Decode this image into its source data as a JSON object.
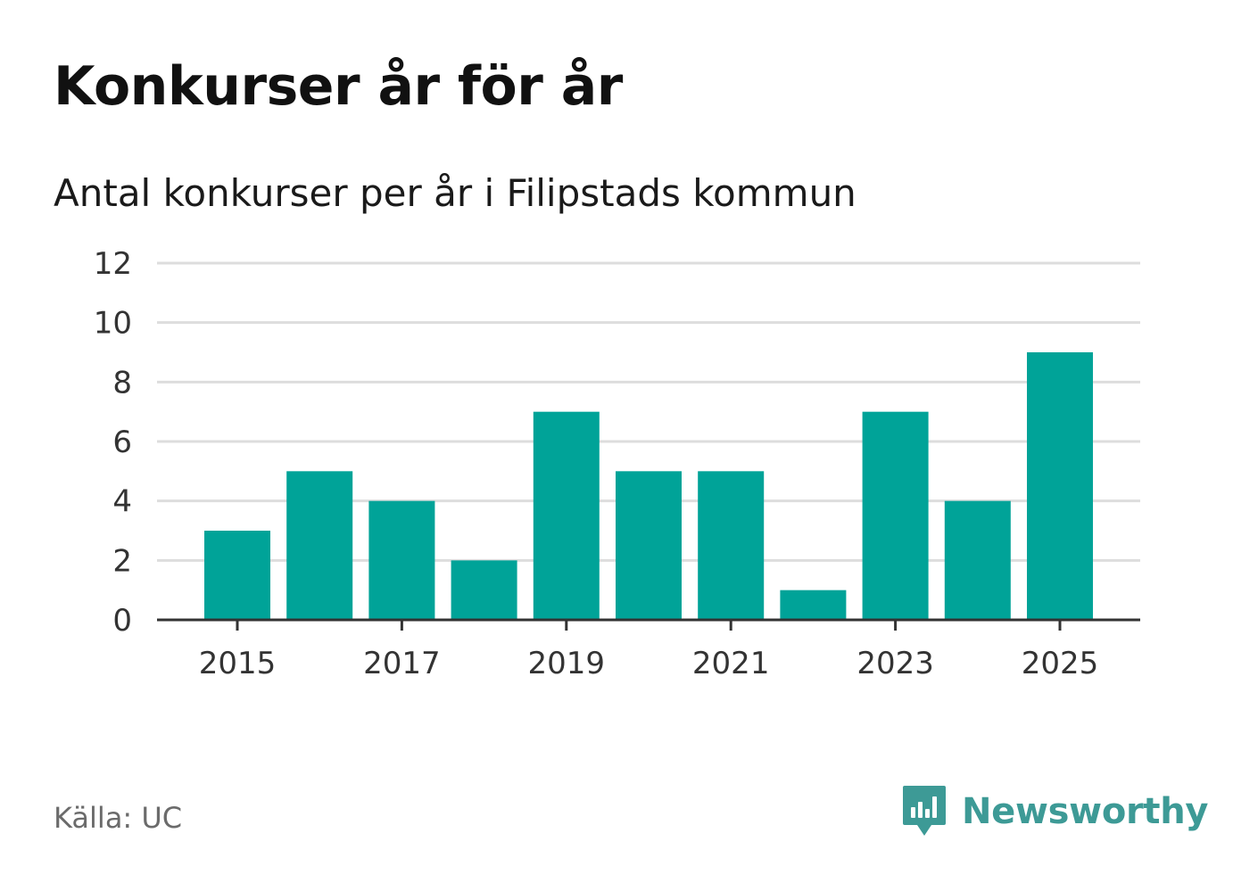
{
  "title": "Konkurser år för år",
  "subtitle": "Antal konkurser per år i Filipstads kommun",
  "source": "Källa: UC",
  "brand": {
    "name": "Newsworthy",
    "color": "#3d9a96",
    "icon": "newsworthy-logo-icon"
  },
  "colors": {
    "bar": "#00a398",
    "grid": "#dddddd",
    "axis": "#333333"
  },
  "chart_data": {
    "type": "bar",
    "title": "Konkurser år för år",
    "subtitle": "Antal konkurser per år i Filipstads kommun",
    "categories": [
      "2015",
      "2016",
      "2017",
      "2018",
      "2019",
      "2020",
      "2021",
      "2022",
      "2023",
      "2024",
      "2025"
    ],
    "values": [
      3,
      5,
      4,
      2,
      7,
      5,
      5,
      1,
      7,
      4,
      9
    ],
    "xticks": [
      "2015",
      "2017",
      "2019",
      "2021",
      "2023",
      "2025"
    ],
    "yticks": [
      0,
      2,
      4,
      6,
      8,
      10,
      12
    ],
    "ylim": [
      0,
      12
    ],
    "xlabel": "",
    "ylabel": "",
    "grid": true,
    "legend": "none"
  }
}
